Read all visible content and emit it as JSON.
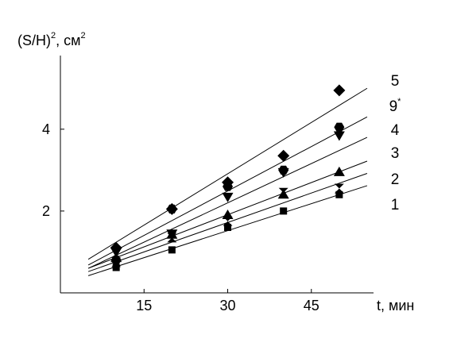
{
  "chart_data": {
    "type": "scatter",
    "y_axis_title": {
      "main": "(S/H)",
      "sup": "2",
      "sep": ", см",
      "unit_sup": "2"
    },
    "x_axis_title": "t, мин",
    "xlim": [
      0,
      58
    ],
    "ylim": [
      0,
      5.8
    ],
    "xticks": [
      15,
      30,
      45
    ],
    "xtick_labels": [
      "15",
      "30",
      "45"
    ],
    "yticks": [
      2,
      4
    ],
    "ytick_labels": [
      "2",
      "4"
    ],
    "grid": false,
    "series": [
      {
        "name": "1",
        "marker": "square",
        "points": [
          [
            10,
            0.62
          ],
          [
            20,
            1.05
          ],
          [
            30,
            1.6
          ],
          [
            40,
            2.0
          ],
          [
            50,
            2.4
          ]
        ],
        "fit": [
          [
            5,
            0.42
          ],
          [
            55,
            2.62
          ]
        ]
      },
      {
        "name": "2",
        "marker": "hourglass",
        "points": [
          [
            10,
            0.75
          ],
          [
            20,
            1.35
          ],
          [
            30,
            1.75
          ],
          [
            40,
            2.45
          ],
          [
            50,
            2.55
          ]
        ],
        "fit": [
          [
            5,
            0.52
          ],
          [
            55,
            2.92
          ]
        ]
      },
      {
        "name": "3",
        "marker": "triangle-up",
        "points": [
          [
            10,
            0.85
          ],
          [
            20,
            1.42
          ],
          [
            30,
            1.9
          ],
          [
            40,
            2.4
          ],
          [
            50,
            2.95
          ]
        ],
        "fit": [
          [
            5,
            0.6
          ],
          [
            55,
            3.22
          ]
        ]
      },
      {
        "name": "4",
        "marker": "triangle-down",
        "points": [
          [
            10,
            1.0
          ],
          [
            20,
            1.45
          ],
          [
            30,
            2.35
          ],
          [
            40,
            2.95
          ],
          [
            50,
            3.85
          ]
        ],
        "fit": [
          [
            5,
            0.6
          ],
          [
            55,
            3.8
          ]
        ]
      },
      {
        "name": "9",
        "name_sup": "*",
        "marker": "hexagon",
        "points": [
          [
            10,
            0.8
          ],
          [
            20,
            2.05
          ],
          [
            30,
            2.6
          ],
          [
            40,
            3.0
          ],
          [
            50,
            4.05
          ]
        ],
        "fit": [
          [
            5,
            0.68
          ],
          [
            55,
            4.3
          ]
        ]
      },
      {
        "name": "5",
        "marker": "diamond",
        "points": [
          [
            10,
            1.1
          ],
          [
            20,
            2.05
          ],
          [
            30,
            2.7
          ],
          [
            40,
            3.35
          ],
          [
            50,
            4.95
          ]
        ],
        "fit": [
          [
            5,
            0.82
          ],
          [
            55,
            5.0
          ]
        ]
      }
    ]
  }
}
